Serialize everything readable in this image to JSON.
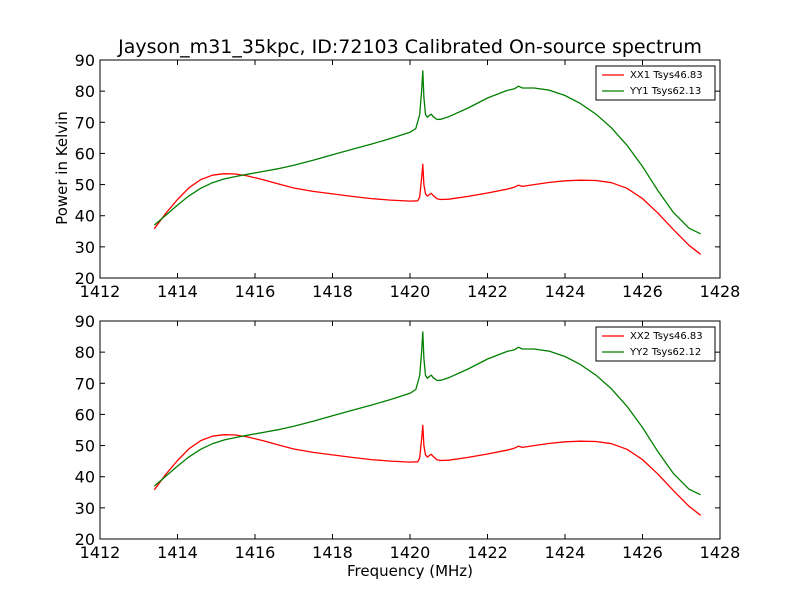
{
  "title": "Jayson_m31_35kpc, ID:72103 Calibrated On-source spectrum",
  "ylabel": "Power in Kelvin",
  "xlabel": "Frequency (MHz)",
  "colors": {
    "red": "#ff0000",
    "green": "#008000"
  },
  "chart_data": [
    {
      "type": "line",
      "xlim": [
        1412,
        1428
      ],
      "ylim": [
        20,
        90
      ],
      "xticks": [
        1412,
        1414,
        1416,
        1418,
        1420,
        1422,
        1424,
        1426,
        1428
      ],
      "yticks": [
        20,
        30,
        40,
        50,
        60,
        70,
        80,
        90
      ],
      "legend_position": "top-right",
      "series": [
        {
          "name": "XX1 Tsys46.83",
          "color": "#ff0000",
          "x": [
            1413.4,
            1413.7,
            1414.0,
            1414.3,
            1414.6,
            1414.9,
            1415.2,
            1415.5,
            1415.8,
            1416.2,
            1416.6,
            1417.0,
            1417.5,
            1418.0,
            1418.5,
            1419.0,
            1419.5,
            1420.0,
            1420.2,
            1420.25,
            1420.3,
            1420.33,
            1420.36,
            1420.4,
            1420.45,
            1420.5,
            1420.55,
            1420.6,
            1420.7,
            1420.8,
            1421.0,
            1421.5,
            1422.0,
            1422.5,
            1422.7,
            1422.8,
            1422.9,
            1423.2,
            1423.6,
            1424.0,
            1424.4,
            1424.8,
            1425.2,
            1425.6,
            1426.0,
            1426.4,
            1426.8,
            1427.2,
            1427.5
          ],
          "y": [
            35.8,
            40.8,
            45.2,
            49.0,
            51.6,
            53.0,
            53.5,
            53.4,
            52.8,
            51.6,
            50.2,
            48.9,
            47.8,
            47.0,
            46.2,
            45.5,
            45.0,
            44.7,
            44.8,
            46.0,
            52.0,
            56.5,
            50.0,
            47.0,
            46.3,
            46.8,
            47.2,
            46.5,
            45.4,
            45.2,
            45.3,
            46.2,
            47.3,
            48.5,
            49.2,
            49.8,
            49.4,
            50.0,
            50.7,
            51.2,
            51.4,
            51.3,
            50.6,
            48.8,
            45.5,
            40.8,
            35.5,
            30.5,
            27.6
          ]
        },
        {
          "name": "YY1 Tsys62.13",
          "color": "#008000",
          "x": [
            1413.4,
            1413.7,
            1414.0,
            1414.3,
            1414.6,
            1414.9,
            1415.2,
            1415.5,
            1415.8,
            1416.2,
            1416.6,
            1417.0,
            1417.5,
            1418.0,
            1418.5,
            1419.0,
            1419.5,
            1420.0,
            1420.15,
            1420.25,
            1420.3,
            1420.33,
            1420.36,
            1420.4,
            1420.45,
            1420.5,
            1420.55,
            1420.6,
            1420.7,
            1420.8,
            1421.0,
            1421.5,
            1422.0,
            1422.5,
            1422.7,
            1422.8,
            1422.9,
            1423.2,
            1423.6,
            1424.0,
            1424.4,
            1424.8,
            1425.2,
            1425.6,
            1426.0,
            1426.4,
            1426.8,
            1427.2,
            1427.5
          ],
          "y": [
            37.0,
            40.2,
            43.4,
            46.4,
            48.8,
            50.6,
            51.8,
            52.6,
            53.3,
            54.2,
            55.1,
            56.2,
            57.8,
            59.6,
            61.3,
            63.0,
            64.8,
            66.8,
            68.0,
            72.5,
            80.0,
            86.5,
            78.0,
            72.5,
            71.6,
            72.2,
            72.6,
            71.8,
            70.9,
            71.0,
            71.8,
            74.6,
            77.8,
            80.2,
            80.8,
            81.6,
            81.0,
            81.0,
            80.3,
            78.6,
            76.0,
            72.6,
            68.2,
            62.6,
            55.8,
            48.0,
            41.0,
            36.0,
            34.2
          ]
        }
      ]
    },
    {
      "type": "line",
      "xlim": [
        1412,
        1428
      ],
      "ylim": [
        20,
        90
      ],
      "xticks": [
        1412,
        1414,
        1416,
        1418,
        1420,
        1422,
        1424,
        1426,
        1428
      ],
      "yticks": [
        20,
        30,
        40,
        50,
        60,
        70,
        80,
        90
      ],
      "legend_position": "top-right",
      "series": [
        {
          "name": "XX2 Tsys46.83",
          "color": "#ff0000",
          "x": [
            1413.4,
            1413.7,
            1414.0,
            1414.3,
            1414.6,
            1414.9,
            1415.2,
            1415.5,
            1415.8,
            1416.2,
            1416.6,
            1417.0,
            1417.5,
            1418.0,
            1418.5,
            1419.0,
            1419.5,
            1420.0,
            1420.2,
            1420.25,
            1420.3,
            1420.33,
            1420.36,
            1420.4,
            1420.45,
            1420.5,
            1420.55,
            1420.6,
            1420.7,
            1420.8,
            1421.0,
            1421.5,
            1422.0,
            1422.5,
            1422.7,
            1422.8,
            1422.9,
            1423.2,
            1423.6,
            1424.0,
            1424.4,
            1424.8,
            1425.2,
            1425.6,
            1426.0,
            1426.4,
            1426.8,
            1427.2,
            1427.5
          ],
          "y": [
            35.8,
            40.8,
            45.2,
            49.0,
            51.6,
            53.0,
            53.5,
            53.4,
            52.8,
            51.6,
            50.2,
            48.9,
            47.8,
            47.0,
            46.2,
            45.5,
            45.0,
            44.7,
            44.8,
            46.0,
            52.0,
            56.5,
            50.0,
            47.0,
            46.3,
            46.8,
            47.2,
            46.5,
            45.4,
            45.2,
            45.3,
            46.2,
            47.3,
            48.5,
            49.2,
            49.8,
            49.4,
            50.0,
            50.7,
            51.2,
            51.4,
            51.3,
            50.6,
            48.8,
            45.5,
            40.8,
            35.5,
            30.5,
            27.6
          ]
        },
        {
          "name": "YY2 Tsys62.12",
          "color": "#008000",
          "x": [
            1413.4,
            1413.7,
            1414.0,
            1414.3,
            1414.6,
            1414.9,
            1415.2,
            1415.5,
            1415.8,
            1416.2,
            1416.6,
            1417.0,
            1417.5,
            1418.0,
            1418.5,
            1419.0,
            1419.5,
            1420.0,
            1420.15,
            1420.25,
            1420.3,
            1420.33,
            1420.36,
            1420.4,
            1420.45,
            1420.5,
            1420.55,
            1420.6,
            1420.7,
            1420.8,
            1421.0,
            1421.5,
            1422.0,
            1422.5,
            1422.7,
            1422.8,
            1422.9,
            1423.2,
            1423.6,
            1424.0,
            1424.4,
            1424.8,
            1425.2,
            1425.6,
            1426.0,
            1426.4,
            1426.8,
            1427.2,
            1427.5
          ],
          "y": [
            37.0,
            40.2,
            43.4,
            46.4,
            48.8,
            50.6,
            51.8,
            52.6,
            53.3,
            54.2,
            55.1,
            56.2,
            57.8,
            59.6,
            61.3,
            63.0,
            64.8,
            66.8,
            68.0,
            72.5,
            80.0,
            86.5,
            78.0,
            72.5,
            71.6,
            72.2,
            72.6,
            71.8,
            70.9,
            71.0,
            71.8,
            74.6,
            77.8,
            80.2,
            80.8,
            81.6,
            81.0,
            81.0,
            80.3,
            78.6,
            76.0,
            72.6,
            68.2,
            62.6,
            55.8,
            48.0,
            41.0,
            36.0,
            34.2
          ]
        }
      ]
    }
  ]
}
